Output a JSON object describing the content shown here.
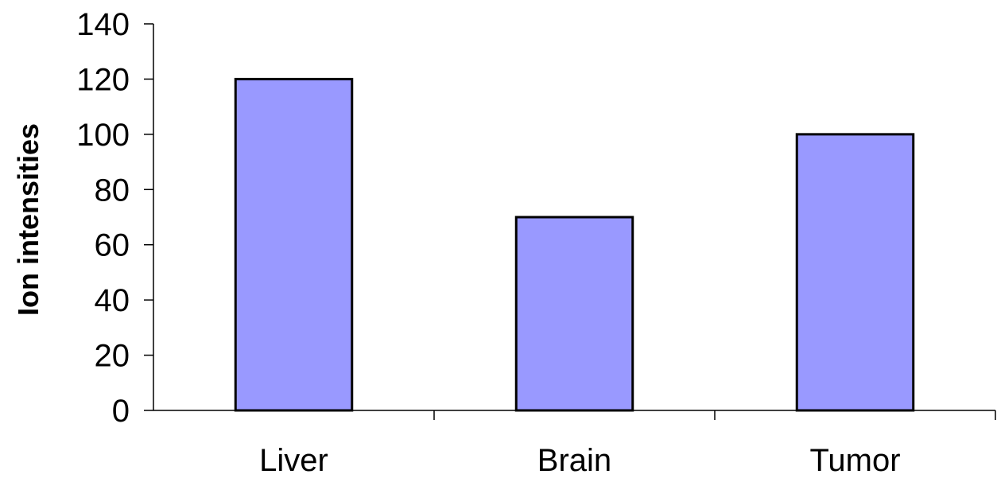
{
  "chart_data": {
    "type": "bar",
    "categories": [
      "Liver",
      "Brain",
      "Tumor"
    ],
    "values": [
      120,
      70,
      100
    ],
    "title": "",
    "xlabel": "",
    "ylabel": "Ion intensities",
    "ylim": [
      0,
      140
    ],
    "yticks": [
      0,
      20,
      40,
      60,
      80,
      100,
      120,
      140
    ],
    "grid": false,
    "legend": "none",
    "bar_color": "#9999FF",
    "bar_edge_color": "#000000"
  }
}
